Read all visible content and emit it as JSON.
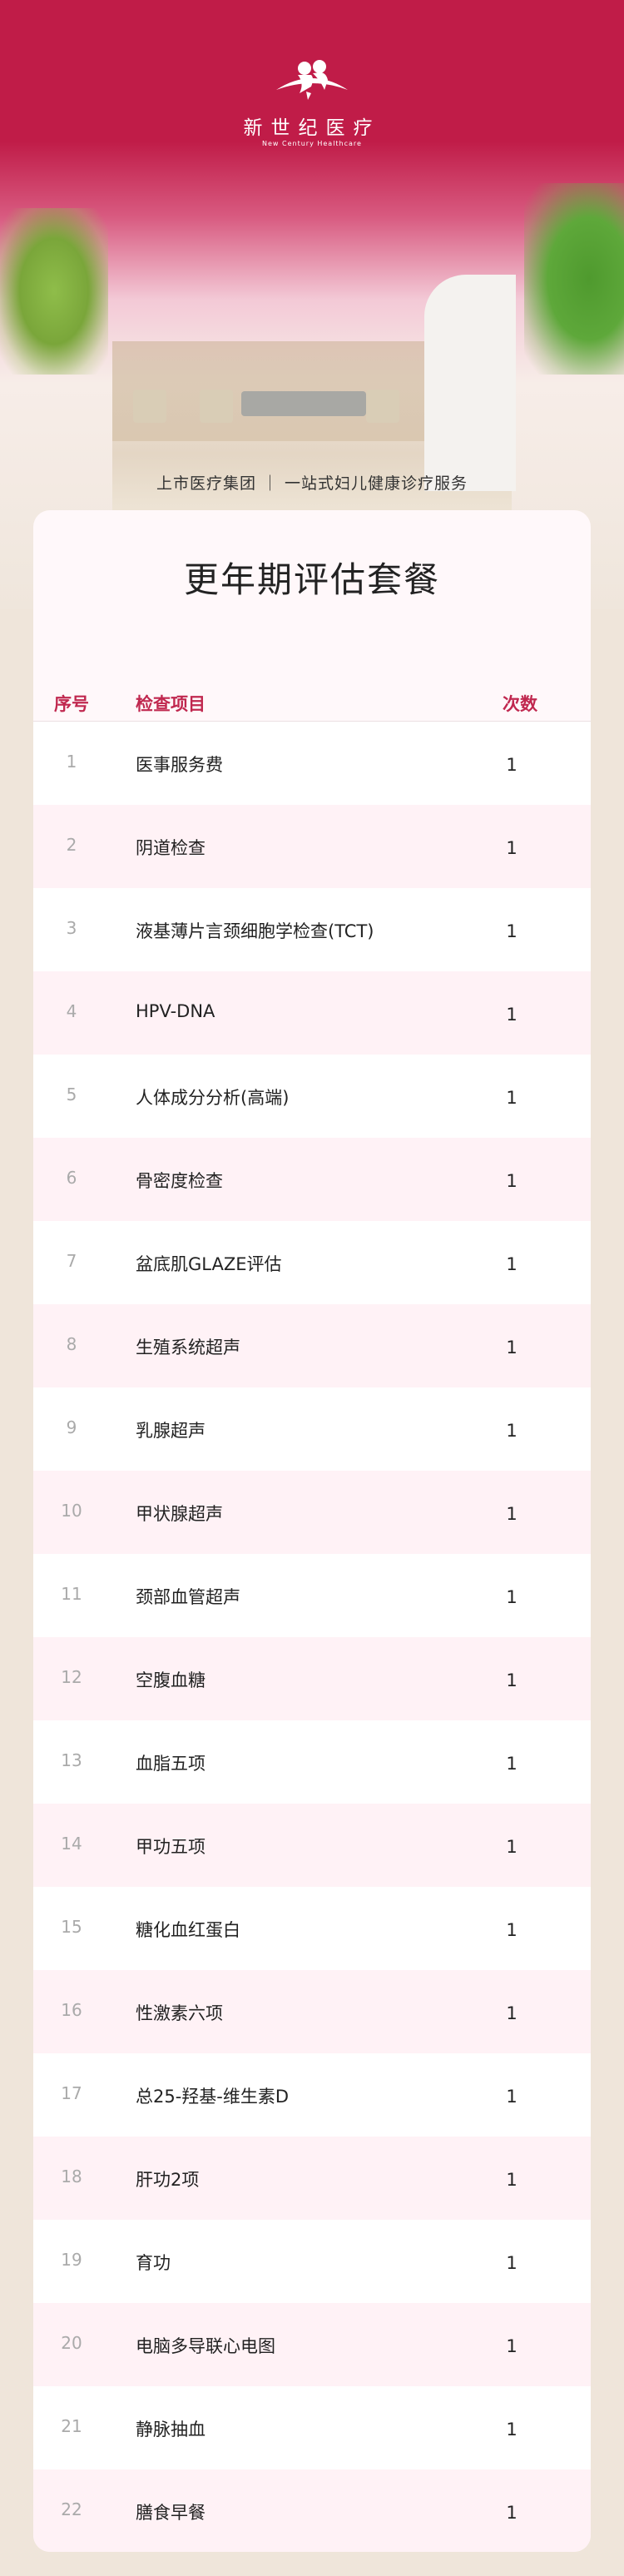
{
  "brand": {
    "name_cn": "新世纪医疗",
    "name_en": "New Century Healthcare",
    "color": "#c01c48"
  },
  "tagline": "上市医疗集团 ｜ 一站式妇儿健康诊疗服务",
  "card": {
    "title": "更年期评估套餐",
    "headers": {
      "seq": "序号",
      "item": "检查项目",
      "count": "次数"
    },
    "rows": [
      {
        "seq": "1",
        "item": "医事服务费",
        "count": "1"
      },
      {
        "seq": "2",
        "item": "阴道检查",
        "count": "1"
      },
      {
        "seq": "3",
        "item": "液基薄片言颈细胞学检查(TCT)",
        "count": "1"
      },
      {
        "seq": "4",
        "item": "HPV-DNA",
        "count": "1"
      },
      {
        "seq": "5",
        "item": "人体成分分析(高端)",
        "count": "1"
      },
      {
        "seq": "6",
        "item": "骨密度检查",
        "count": "1"
      },
      {
        "seq": "7",
        "item": "盆底肌GLAZE评估",
        "count": "1"
      },
      {
        "seq": "8",
        "item": "生殖系统超声",
        "count": "1"
      },
      {
        "seq": "9",
        "item": "乳腺超声",
        "count": "1"
      },
      {
        "seq": "10",
        "item": "甲状腺超声",
        "count": "1"
      },
      {
        "seq": "11",
        "item": "颈部血管超声",
        "count": "1"
      },
      {
        "seq": "12",
        "item": "空腹血糖",
        "count": "1"
      },
      {
        "seq": "13",
        "item": "血脂五项",
        "count": "1"
      },
      {
        "seq": "14",
        "item": "甲功五项",
        "count": "1"
      },
      {
        "seq": "15",
        "item": "糖化血红蛋白",
        "count": "1"
      },
      {
        "seq": "16",
        "item": "性激素六项",
        "count": "1"
      },
      {
        "seq": "17",
        "item": "总25-羟基-维生素D",
        "count": "1"
      },
      {
        "seq": "18",
        "item": "肝功2项",
        "count": "1"
      },
      {
        "seq": "19",
        "item": "育功",
        "count": "1"
      },
      {
        "seq": "20",
        "item": "电脑多导联心电图",
        "count": "1"
      },
      {
        "seq": "21",
        "item": "静脉抽血",
        "count": "1"
      },
      {
        "seq": "22",
        "item": "膳食早餐",
        "count": "1"
      }
    ]
  }
}
